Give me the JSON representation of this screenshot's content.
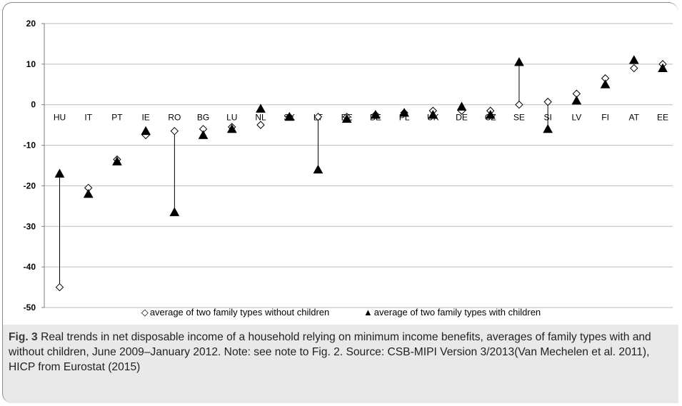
{
  "chart_data": {
    "type": "scatter",
    "categories": [
      "HU",
      "IT",
      "PT",
      "IE",
      "RO",
      "BG",
      "LU",
      "NL",
      "SK",
      "LT",
      "EE",
      "BE",
      "PL",
      "UK",
      "DE",
      "CZ",
      "SE",
      "SI",
      "LV",
      "FI",
      "AT",
      "EE"
    ],
    "series": [
      {
        "name": "average of two family types without children",
        "marker": "diamond-open",
        "values": [
          -45,
          -20.5,
          -13.5,
          -7.5,
          -6.5,
          -6,
          -5.5,
          -5,
          -3,
          -3,
          -3,
          -2.5,
          -2,
          -1.5,
          -1.5,
          -1.5,
          0,
          0.7,
          2.7,
          6.5,
          9,
          10
        ]
      },
      {
        "name": "average of two family types with children",
        "marker": "triangle-filled",
        "values": [
          -17,
          -22,
          -14,
          -6.5,
          -26.5,
          -7.5,
          -6,
          -1,
          -3,
          -16,
          -3.5,
          -2.5,
          -2,
          -2.5,
          -0.5,
          -2.5,
          10.5,
          -6,
          1,
          5,
          11,
          9
        ]
      }
    ],
    "ylim": [
      -50,
      20
    ],
    "yticks": [
      20,
      10,
      0,
      -10,
      -20,
      -30,
      -40,
      -50
    ],
    "grid": true,
    "legend_position": "bottom",
    "connectors": [
      "HU",
      "RO",
      "LT",
      "SE",
      "SI"
    ]
  },
  "caption": {
    "fig_label": "Fig. 3",
    "text": " Real trends in net disposable income of a household relying on minimum income benefits, averages of family types with and without children, June 2009–January 2012. Note: see note to Fig. 2. Source: CSB-MIPI Version 3/2013(Van Mechelen et al. 2011), HICP from Eurostat (2015)"
  },
  "legend": {
    "item_without_marker": "◇",
    "item_with_marker": "▲"
  },
  "colors": {
    "grid": "#bdbdbd",
    "axis": "#7f7f7f",
    "marker": "#000000",
    "caption_bg": "#e9e9e9"
  }
}
